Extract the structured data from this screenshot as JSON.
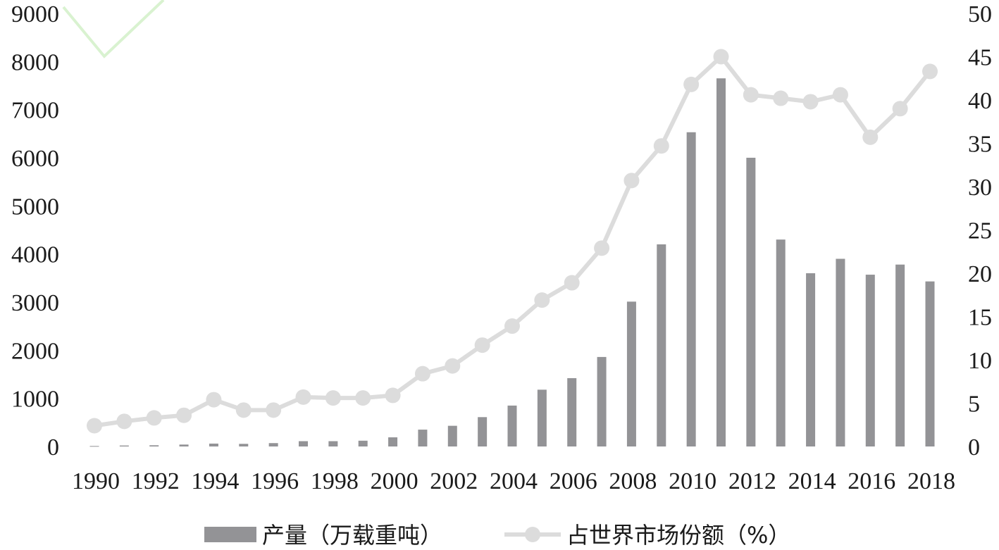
{
  "chart_data": {
    "type": "bar",
    "x": [
      "1990",
      "1991",
      "1992",
      "1993",
      "1994",
      "1995",
      "1996",
      "1997",
      "1998",
      "1999",
      "2000",
      "2001",
      "2002",
      "2003",
      "2004",
      "2005",
      "2006",
      "2007",
      "2008",
      "2009",
      "2010",
      "2011",
      "2012",
      "2013",
      "2014",
      "2015",
      "2016",
      "2017",
      "2018"
    ],
    "x_tick_labels": [
      "1990",
      "1992",
      "1994",
      "1996",
      "1998",
      "2000",
      "2002",
      "2004",
      "2006",
      "2008",
      "2010",
      "2012",
      "2014",
      "2016",
      "2018"
    ],
    "series": [
      {
        "name": "产量（万载重吨）",
        "type": "bar",
        "axis": "left",
        "color": "#939396",
        "values": [
          10,
          20,
          25,
          40,
          60,
          55,
          70,
          110,
          110,
          120,
          190,
          350,
          430,
          610,
          850,
          1180,
          1420,
          1860,
          3010,
          4200,
          6530,
          7650,
          6000,
          4300,
          3600,
          3900,
          3570,
          3780,
          3430
        ]
      },
      {
        "name": "占世界市场份额（%）",
        "type": "line",
        "axis": "right",
        "color": "#dcdcdc",
        "values": [
          2.4,
          2.9,
          3.3,
          3.6,
          5.4,
          4.2,
          4.2,
          5.7,
          5.6,
          5.6,
          5.9,
          8.4,
          9.3,
          11.7,
          13.9,
          16.9,
          18.9,
          22.9,
          30.7,
          34.7,
          41.8,
          45.0,
          40.6,
          40.2,
          39.8,
          40.6,
          35.7,
          39.0,
          43.3
        ]
      }
    ],
    "y_left": {
      "min": 0,
      "max": 9000,
      "ticks": [
        0,
        1000,
        2000,
        3000,
        4000,
        5000,
        6000,
        7000,
        8000,
        9000
      ]
    },
    "y_right": {
      "min": 0,
      "max": 50,
      "ticks": [
        0,
        5,
        10,
        15,
        20,
        25,
        30,
        35,
        40,
        45,
        50
      ]
    },
    "legend_position": "bottom",
    "grid": false
  }
}
